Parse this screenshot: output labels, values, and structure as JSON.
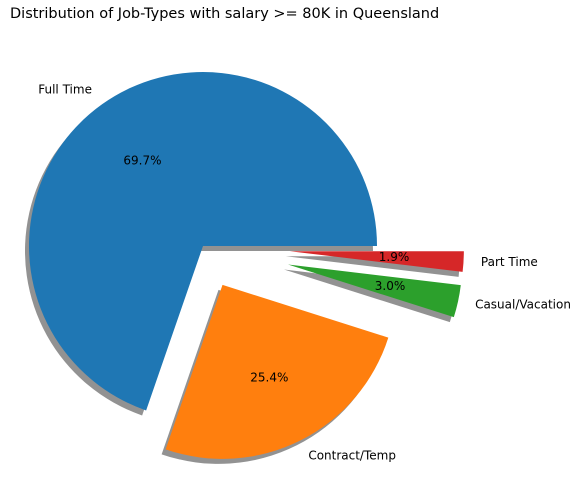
{
  "chart_data": {
    "type": "pie",
    "title": "Distribution of Job-Types with salary >= 80K in Queensland",
    "slices": [
      {
        "label": "Full Time",
        "percent": 69.7,
        "percent_label": "69.7%",
        "color": "#1f77b4",
        "explode": 0.0
      },
      {
        "label": "Contract/Temp",
        "percent": 25.4,
        "percent_label": "25.4%",
        "color": "#ff7f0e",
        "explode": 0.25
      },
      {
        "label": "Casual/Vacation",
        "percent": 3.0,
        "percent_label": "3.0%",
        "color": "#2ca02c",
        "explode": 0.5
      },
      {
        "label": "Part Time",
        "percent": 1.9,
        "percent_label": "1.9%",
        "color": "#d62728",
        "explode": 0.5
      }
    ],
    "start_angle": 0,
    "shadow": true
  }
}
